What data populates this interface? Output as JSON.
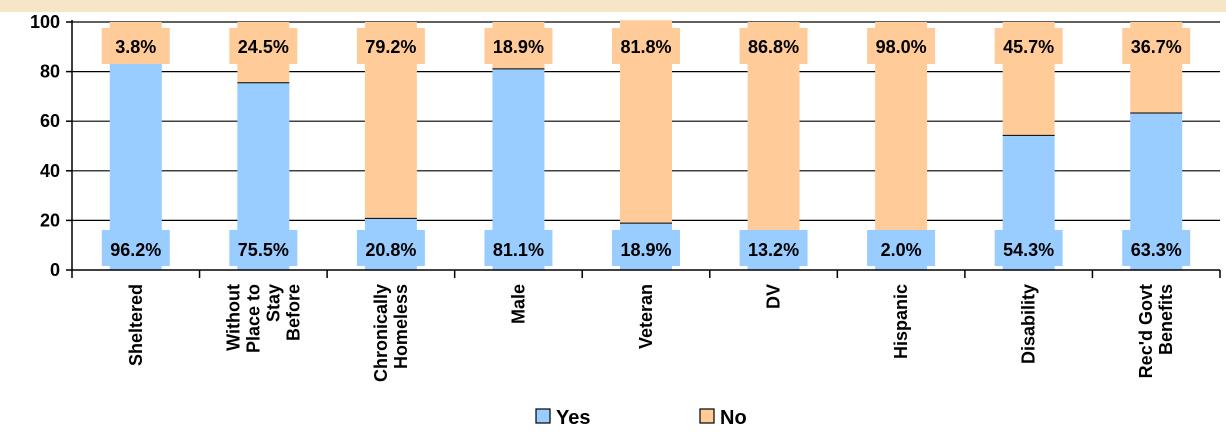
{
  "chart_data": {
    "type": "bar",
    "stacked": true,
    "categories": [
      [
        "Sheltered"
      ],
      [
        "Without",
        "Place to",
        "Stay",
        "Before"
      ],
      [
        "Chronically",
        "Homeless"
      ],
      [
        "Male"
      ],
      [
        "Veteran"
      ],
      [
        "DV"
      ],
      [
        "Hispanic"
      ],
      [
        "Disability"
      ],
      [
        "Rec'd Govt",
        "Benefits"
      ]
    ],
    "series": [
      {
        "name": "Yes",
        "values": [
          96.2,
          75.5,
          20.8,
          81.1,
          18.9,
          13.2,
          2.0,
          54.3,
          63.3
        ],
        "labels": [
          "96.2%",
          "75.5%",
          "20.8%",
          "81.1%",
          "18.9%",
          "13.2%",
          "2.0%",
          "54.3%",
          "63.3%"
        ]
      },
      {
        "name": "No",
        "values": [
          3.8,
          24.5,
          79.2,
          18.9,
          81.8,
          86.8,
          98.0,
          45.7,
          36.7
        ],
        "labels": [
          "3.8%",
          "24.5%",
          "79.2%",
          "18.9%",
          "81.8%",
          "86.8%",
          "98.0%",
          "45.7%",
          "36.7%"
        ]
      }
    ],
    "ylim": [
      0,
      100
    ],
    "yticks": [
      "0",
      "20",
      "40",
      "60",
      "80",
      "100"
    ],
    "xlabel": "",
    "ylabel": "",
    "title": "",
    "grid": true,
    "legend_position": "bottom",
    "colors": {
      "yes": "#99ccff",
      "no": "#ffcc99",
      "background": "#ffffff",
      "top_band": "#f6e6c8",
      "axis": "#000000",
      "grid": "#000000"
    }
  }
}
